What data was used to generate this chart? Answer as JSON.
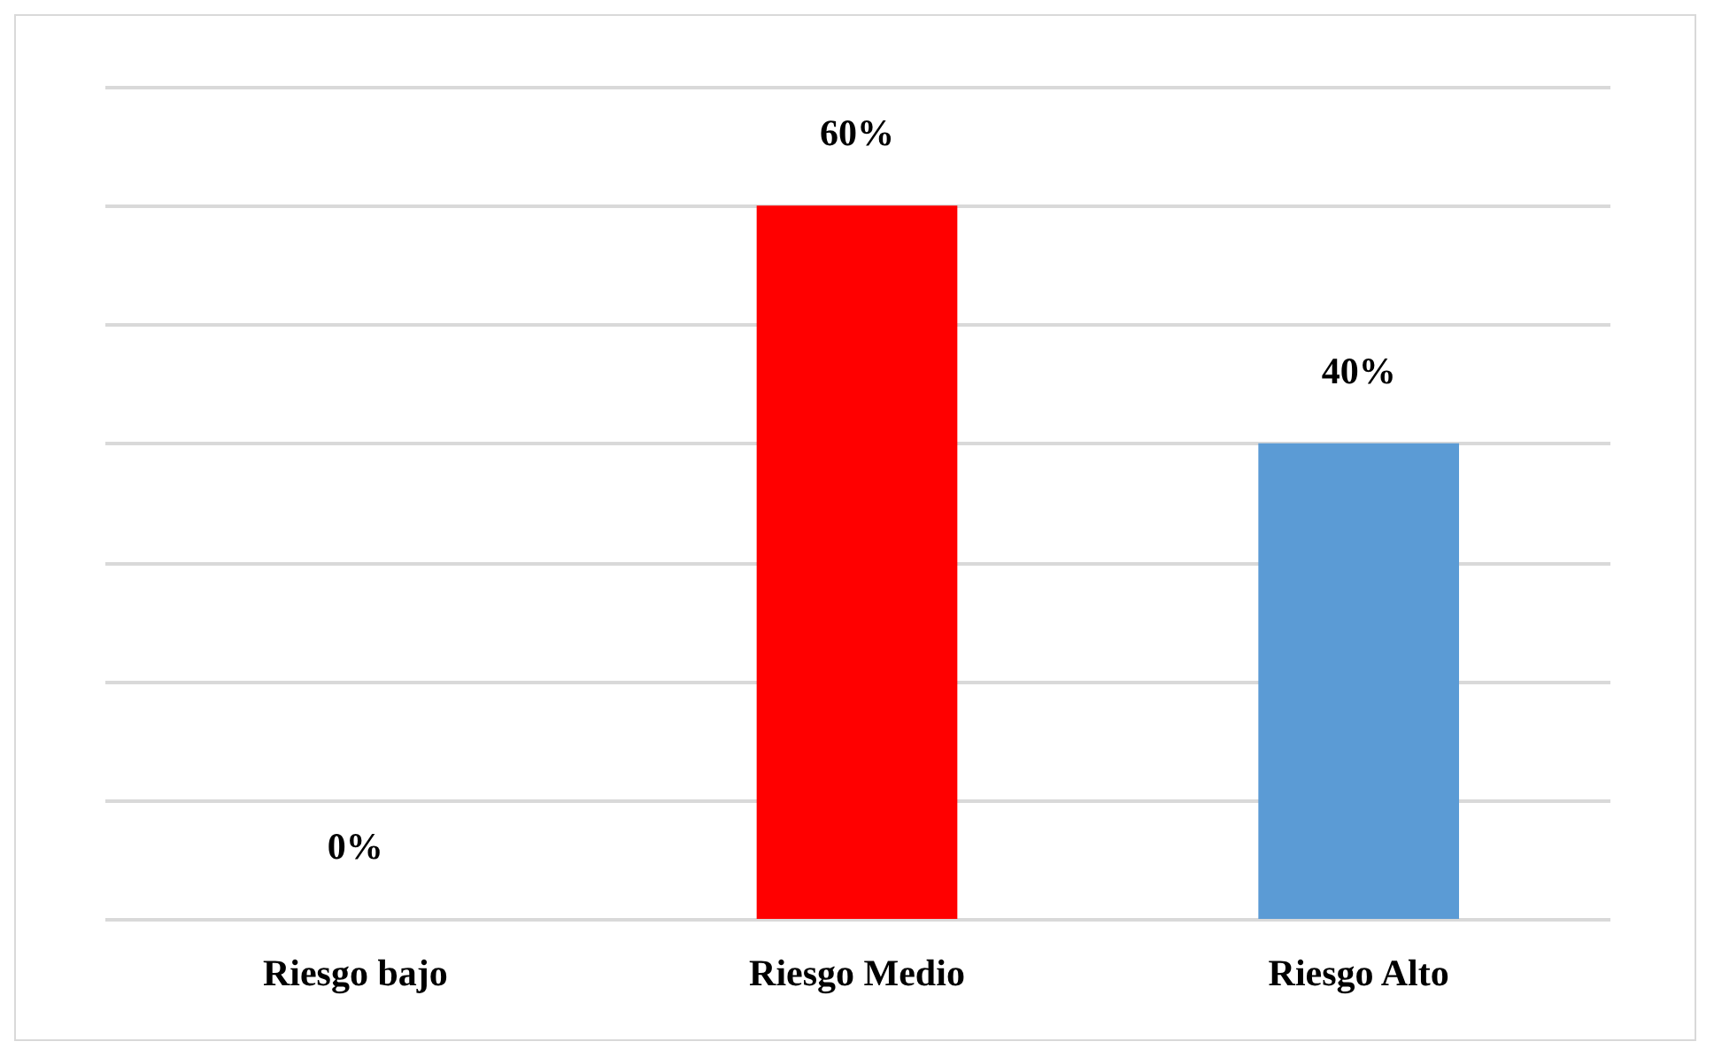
{
  "chart_data": {
    "type": "bar",
    "categories": [
      "Riesgo bajo",
      "Riesgo Medio",
      "Riesgo Alto"
    ],
    "values": [
      0,
      60,
      40
    ],
    "colors": [
      "#00893a",
      "#ff0000",
      "#5b9bd5"
    ],
    "value_labels": [
      "0%",
      "60%",
      "40%"
    ],
    "ylim": [
      0,
      70
    ],
    "yticks": [
      {
        "value": 0,
        "label": null
      },
      {
        "value": 10,
        "label": null
      },
      {
        "value": 20,
        "label": null
      },
      {
        "value": 30,
        "label": null
      },
      {
        "value": 40,
        "label": null
      },
      {
        "value": 50,
        "label": null
      },
      {
        "value": 60,
        "label": null
      },
      {
        "value": 70,
        "label": null
      }
    ],
    "grid": "y",
    "tick_labels": "x"
  }
}
